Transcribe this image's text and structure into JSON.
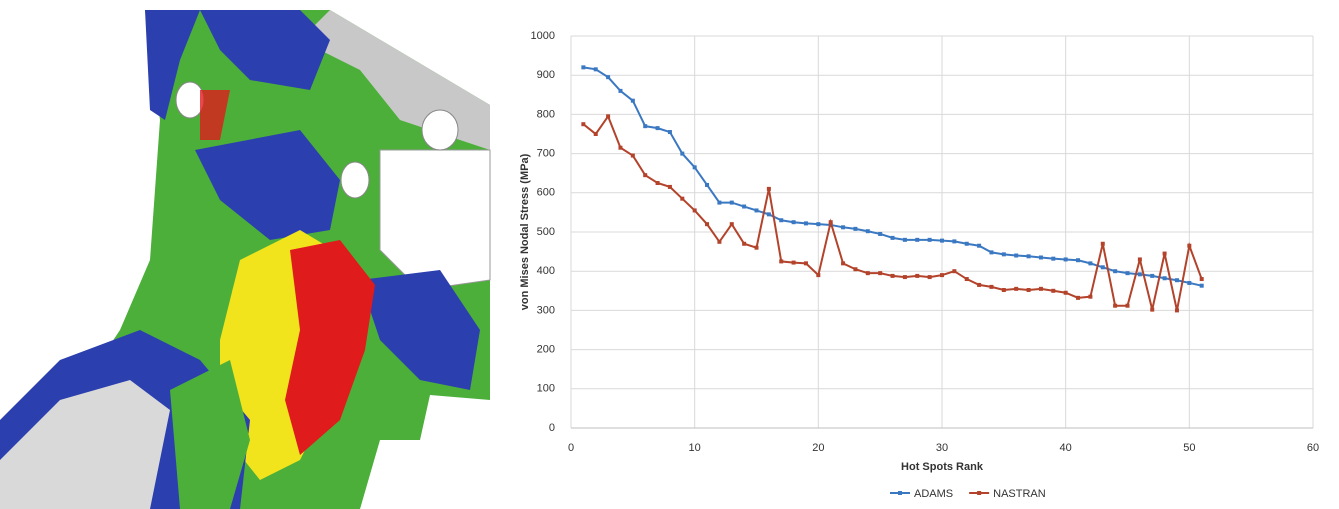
{
  "chart_data": {
    "type": "line",
    "xlabel": "Hot Spots Rank",
    "ylabel": "von Mises Nodal Stress (MPa)",
    "x": [
      1,
      2,
      3,
      4,
      5,
      6,
      7,
      8,
      9,
      10,
      11,
      12,
      13,
      14,
      15,
      16,
      17,
      18,
      19,
      20,
      21,
      22,
      23,
      24,
      25,
      26,
      27,
      28,
      29,
      30,
      31,
      32,
      33,
      34,
      35,
      36,
      37,
      38,
      39,
      40,
      41,
      42,
      43,
      44,
      45,
      46,
      47,
      48,
      49,
      50,
      51
    ],
    "series": [
      {
        "name": "ADAMS",
        "color": "#3b78c2",
        "values": [
          920,
          915,
          895,
          860,
          835,
          770,
          765,
          755,
          700,
          665,
          620,
          575,
          575,
          565,
          555,
          545,
          530,
          525,
          522,
          520,
          518,
          512,
          508,
          502,
          495,
          485,
          480,
          480,
          480,
          478,
          476,
          470,
          465,
          448,
          443,
          440,
          438,
          435,
          432,
          430,
          428,
          420,
          410,
          400,
          395,
          392,
          388,
          382,
          377,
          370,
          363
        ]
      },
      {
        "name": "NASTRAN",
        "color": "#b3432b",
        "values": [
          775,
          750,
          795,
          715,
          695,
          645,
          625,
          615,
          585,
          555,
          520,
          475,
          520,
          470,
          460,
          610,
          425,
          422,
          420,
          390,
          525,
          420,
          405,
          395,
          395,
          388,
          385,
          388,
          385,
          390,
          400,
          380,
          365,
          360,
          352,
          355,
          352,
          355,
          350,
          345,
          332,
          335,
          470,
          312,
          312,
          430,
          302,
          445,
          300,
          465,
          380
        ]
      }
    ],
    "xlim": [
      0,
      60
    ],
    "xticks": [
      0,
      10,
      20,
      30,
      40,
      50,
      60
    ],
    "ylim": [
      0,
      1000
    ],
    "yticks": [
      0,
      100,
      200,
      300,
      400,
      500,
      600,
      700,
      800,
      900,
      1000
    ],
    "grid": true,
    "legend": "bottom"
  }
}
